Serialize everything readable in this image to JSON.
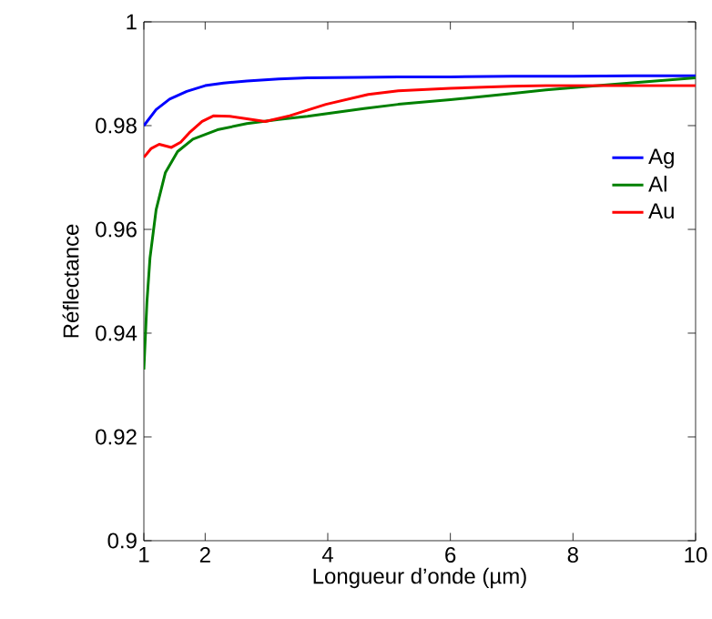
{
  "chart_data": {
    "type": "line",
    "xlabel": "Longueur d’onde (µm)",
    "ylabel": "Réflectance",
    "xlim": [
      1,
      10
    ],
    "ylim": [
      0.9,
      1
    ],
    "xticks": [
      1,
      2,
      4,
      6,
      8,
      10
    ],
    "yticks": [
      0.9,
      0.92,
      0.94,
      0.96,
      0.98,
      1
    ],
    "legend": "right",
    "grid": false,
    "line_style": "solid",
    "marker": "none",
    "series": [
      {
        "name": "Ag",
        "color": "#0000ff",
        "x": [
          1,
          1.2,
          1.42,
          1.7,
          2,
          2.3,
          2.68,
          3.2,
          3.67,
          4.5,
          5.15,
          6,
          7,
          8,
          9,
          10
        ],
        "values": [
          0.98,
          0.9831,
          0.9851,
          0.9866,
          0.9877,
          0.9882,
          0.9886,
          0.989,
          0.9892,
          0.9893,
          0.9894,
          0.9894,
          0.9895,
          0.9895,
          0.9896,
          0.9896
        ]
      },
      {
        "name": "Al",
        "color": "#008000",
        "x": [
          1,
          1.05,
          1.1,
          1.2,
          1.35,
          1.55,
          1.8,
          2.2,
          2.68,
          3.2,
          3.67,
          4.59,
          5.15,
          6,
          7,
          7.56,
          8.5,
          10
        ],
        "values": [
          0.933,
          0.946,
          0.9545,
          0.9638,
          0.9709,
          0.975,
          0.9774,
          0.9792,
          0.9804,
          0.9812,
          0.9818,
          0.9833,
          0.9841,
          0.985,
          0.9862,
          0.9869,
          0.9878,
          0.9892
        ]
      },
      {
        "name": "Au",
        "color": "#ff0000",
        "x": [
          1,
          1.12,
          1.25,
          1.45,
          1.6,
          1.74,
          1.95,
          2.14,
          2.4,
          2.68,
          2.98,
          3.38,
          3.97,
          4.66,
          5.15,
          6,
          7,
          7.56,
          8.5,
          10
        ],
        "values": [
          0.9739,
          0.9756,
          0.9764,
          0.9758,
          0.9768,
          0.9786,
          0.9808,
          0.9819,
          0.9818,
          0.9813,
          0.9808,
          0.9819,
          0.9841,
          0.986,
          0.9867,
          0.9872,
          0.9876,
          0.9877,
          0.9877,
          0.9877
        ]
      }
    ]
  }
}
